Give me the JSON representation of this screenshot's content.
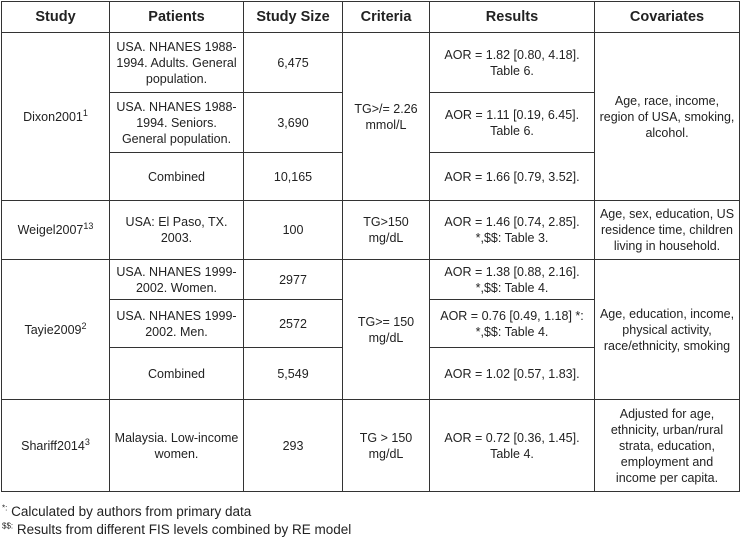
{
  "headers": [
    "Study",
    "Patients",
    "Study Size",
    "Criteria",
    "Results",
    "Covariates"
  ],
  "studies": [
    {
      "name": "Dixon2001",
      "ref": "1",
      "criteria": "TG>/= 2.26 mmol/L",
      "covariates": "Age, race, income, region of USA, smoking, alcohol.",
      "rows": [
        {
          "patients": "USA. NHANES 1988-1994. Adults. General population.",
          "size": "6,475",
          "results": "AOR = 1.82 [0.80, 4.18]. Table 6."
        },
        {
          "patients": "USA. NHANES 1988-1994. Seniors. General population.",
          "size": "3,690",
          "results": "AOR = 1.11 [0.19, 6.45]. Table 6."
        },
        {
          "patients": "Combined",
          "size": "10,165",
          "results": "AOR = 1.66 [0.79, 3.52]."
        }
      ]
    },
    {
      "name": "Weigel2007",
      "ref": "13",
      "criteria": "TG>150 mg/dL",
      "covariates": "Age, sex, education, US residence time, children living in household.",
      "rows": [
        {
          "patients": "USA: El Paso, TX. 2003.",
          "size": "100",
          "results": "AOR = 1.46 [0.74, 2.85]. *,$$: Table 3."
        }
      ]
    },
    {
      "name": "Tayie2009",
      "ref": "2",
      "criteria": "TG>= 150 mg/dL",
      "covariates": "Age, education, income, physical activity, race/ethnicity, smoking",
      "rows": [
        {
          "patients": "USA. NHANES 1999-2002. Women.",
          "size": "2977",
          "results": "AOR = 1.38 [0.88, 2.16]. *,$$: Table 4."
        },
        {
          "patients": "USA. NHANES 1999-2002. Men.",
          "size": "2572",
          "results": "AOR = 0.76 [0.49, 1.18] *: *,$$: Table 4."
        },
        {
          "patients": "Combined",
          "size": "5,549",
          "results": "AOR = 1.02 [0.57, 1.83]."
        }
      ]
    },
    {
      "name": "Shariff2014",
      "ref": "3",
      "criteria": "TG > 150 mg/dL",
      "covariates": "Adjusted for age, ethnicity, urban/rural strata, education, employment and income per capita.",
      "rows": [
        {
          "patients": "Malaysia. Low-income women.",
          "size": "293",
          "results": "AOR = 0.72 [0.36, 1.45]. Table 4."
        }
      ]
    }
  ],
  "footnotes": [
    {
      "mark": "*:",
      "text": "Calculated by authors from primary data"
    },
    {
      "mark": "$$:",
      "text": "Results from different FIS levels combined by RE model"
    }
  ]
}
